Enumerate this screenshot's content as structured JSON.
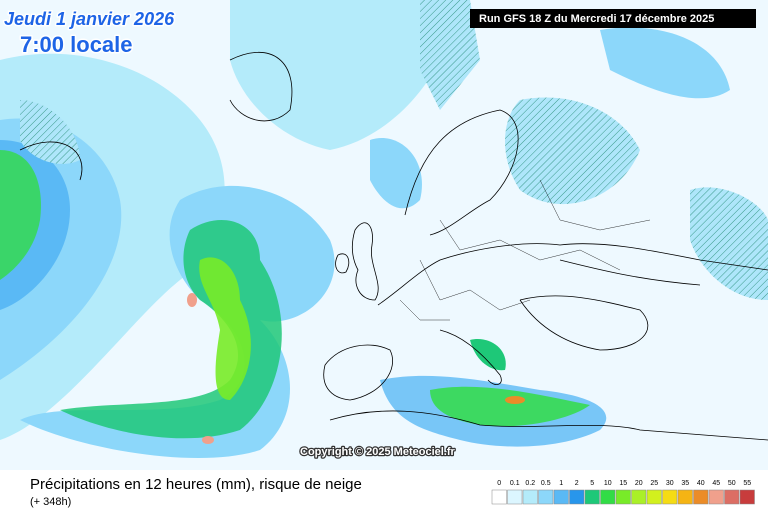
{
  "header": {
    "date": "Jeudi 1 janvier 2026",
    "time": "7:00 locale",
    "run": "Run GFS 18 Z du Mercredi 17 décembre 2025"
  },
  "copyright": "Copyright © 2025 Meteociel.fr",
  "caption": {
    "title": "Précipitations en 12 heures (mm), risque de neige",
    "lead": "(+ 348h)"
  },
  "legend": {
    "items": [
      {
        "label": "0",
        "color": "#ffffff"
      },
      {
        "label": "0.1",
        "color": "#dcf6ff"
      },
      {
        "label": "0.2",
        "color": "#b4ebfa"
      },
      {
        "label": "0.5",
        "color": "#8cd7fa"
      },
      {
        "label": "1",
        "color": "#5ab9f5"
      },
      {
        "label": "2",
        "color": "#2896eb"
      },
      {
        "label": "5",
        "color": "#1ec878"
      },
      {
        "label": "10",
        "color": "#32dc46"
      },
      {
        "label": "15",
        "color": "#78eb28"
      },
      {
        "label": "20",
        "color": "#aaf028"
      },
      {
        "label": "25",
        "color": "#d2f01e"
      },
      {
        "label": "30",
        "color": "#f5dc14"
      },
      {
        "label": "35",
        "color": "#f5b414"
      },
      {
        "label": "40",
        "color": "#eb8c28"
      },
      {
        "label": "45",
        "color": "#f0a08c"
      },
      {
        "label": "50",
        "color": "#dc6e64"
      },
      {
        "label": "55",
        "color": "#c83c3c"
      }
    ]
  }
}
